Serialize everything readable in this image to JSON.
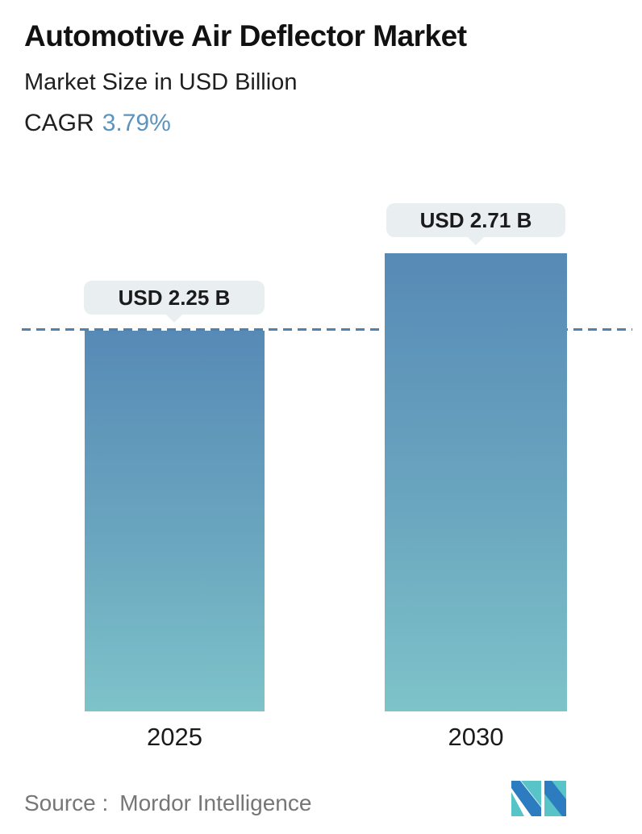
{
  "header": {
    "title": "Automotive Air Deflector Market",
    "subtitle": "Market Size in USD Billion",
    "cagr_label": "CAGR",
    "cagr_value": "3.79%"
  },
  "chart_data": {
    "type": "bar",
    "categories": [
      "2025",
      "2030"
    ],
    "values": [
      2.25,
      2.71
    ],
    "value_labels": [
      "USD 2.25 B",
      "USD 2.71 B"
    ],
    "title": "Automotive Air Deflector Market",
    "ylabel": "Market Size in USD Billion",
    "ylim": [
      0,
      3.0
    ],
    "grid": false,
    "legend": "none",
    "reference_line": {
      "value": 2.25,
      "style": "dashed",
      "color": "#4d82b0"
    },
    "bar_gradient_top": "#578ab6",
    "bar_gradient_bottom": "#7ec3c9"
  },
  "footer": {
    "source_label": "Source :",
    "source_value": "Mordor Intelligence",
    "logo_name": "mordor-intelligence-logo"
  },
  "colors": {
    "accent_blue": "#5d93bc",
    "dashed_line": "#4d82b0",
    "bubble_bg": "#e9eef1",
    "text_dark": "#1a1a1a",
    "text_gray": "#767676",
    "logo_blue": "#2e7cc0",
    "logo_teal": "#58c4c8"
  }
}
